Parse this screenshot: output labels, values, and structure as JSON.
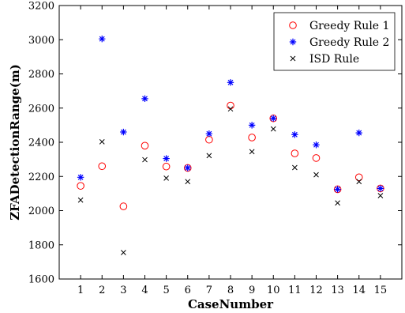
{
  "chart_data": {
    "type": "scatter",
    "xlabel": "CaseNumber",
    "ylabel": "ZFADetectionRange(m)",
    "xlim": [
      0,
      16
    ],
    "ylim": [
      1600,
      3200
    ],
    "xticks": [
      1,
      2,
      3,
      4,
      5,
      6,
      7,
      8,
      9,
      10,
      11,
      12,
      13,
      14,
      15
    ],
    "yticks": [
      1600,
      1800,
      2000,
      2200,
      2400,
      2600,
      2800,
      3000,
      3200
    ],
    "grid": false,
    "legend_position": "top-right",
    "x": [
      1,
      2,
      3,
      4,
      5,
      6,
      7,
      8,
      9,
      10,
      11,
      12,
      13,
      14,
      15
    ],
    "series": [
      {
        "name": "Greedy Rule 1",
        "marker": "circle",
        "color": "#ff0000",
        "values": [
          2145,
          2260,
          2025,
          2380,
          2258,
          2250,
          2415,
          2615,
          2428,
          2540,
          2335,
          2308,
          2125,
          2195,
          2130
        ]
      },
      {
        "name": "Greedy Rule 2",
        "marker": "asterisk",
        "color": "#0000ff",
        "values": [
          2195,
          3005,
          2460,
          2655,
          2305,
          2250,
          2450,
          2750,
          2500,
          2540,
          2445,
          2385,
          2125,
          2455,
          2130
        ]
      },
      {
        "name": "ISD Rule",
        "marker": "x",
        "color": "#000000",
        "values": [
          2062,
          2403,
          1755,
          2298,
          2190,
          2170,
          2322,
          2595,
          2345,
          2478,
          2252,
          2210,
          2045,
          2170,
          2088
        ]
      }
    ]
  }
}
